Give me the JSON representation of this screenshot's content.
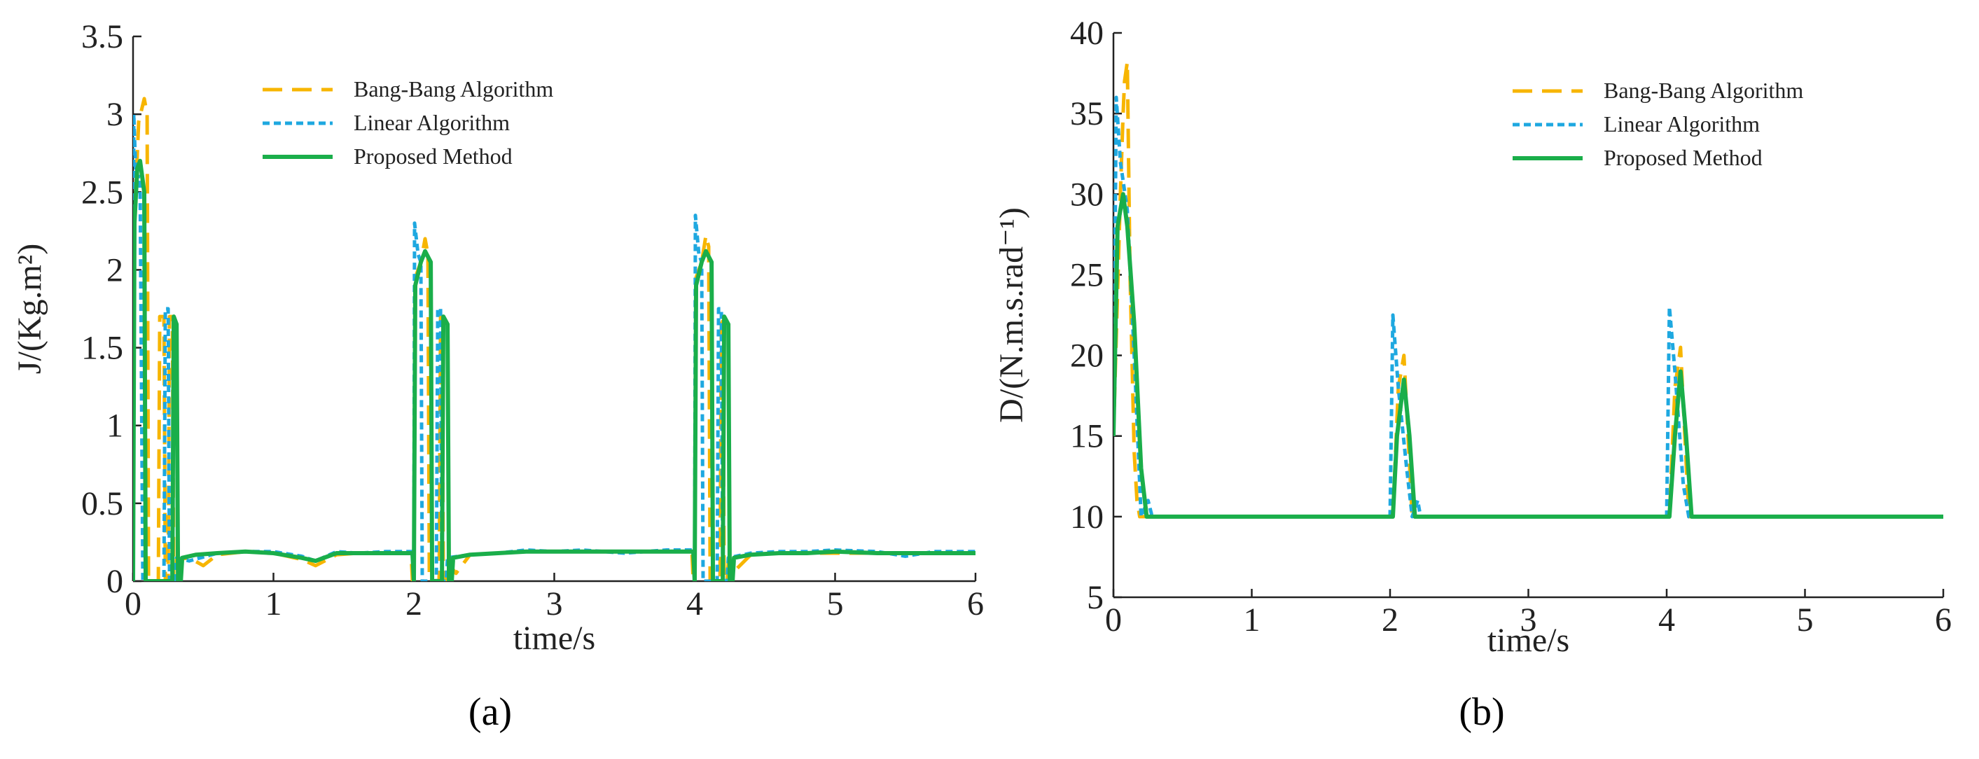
{
  "chart_data": [
    {
      "type": "line",
      "panel_label": "(a)",
      "xlabel": "time/s",
      "ylabel": "J/(Kg.m²)",
      "xlim": [
        0,
        6
      ],
      "ylim": [
        0,
        3.5
      ],
      "xticks": [
        0,
        1,
        2,
        3,
        4,
        5,
        6
      ],
      "yticks": [
        0,
        0.5,
        1,
        1.5,
        2,
        2.5,
        3,
        3.5
      ],
      "xtick_labels": [
        "0",
        "1",
        "2",
        "3",
        "4",
        "5",
        "6"
      ],
      "ytick_labels": [
        "0",
        "0.5",
        "1",
        "1.5",
        "2",
        "2.5",
        "3",
        "3.5"
      ],
      "legend_position": "top-center",
      "grid": false,
      "series": [
        {
          "name": "Bang-Bang Algorithm",
          "color": "#F7B500",
          "dash": "dashed",
          "points": [
            [
              0,
              0
            ],
            [
              0.01,
              2.3
            ],
            [
              0.04,
              2.95
            ],
            [
              0.08,
              3.1
            ],
            [
              0.1,
              3.0
            ],
            [
              0.11,
              0
            ],
            [
              0.18,
              0
            ],
            [
              0.19,
              1.7
            ],
            [
              0.22,
              1.7
            ],
            [
              0.23,
              0
            ],
            [
              0.25,
              0
            ],
            [
              0.26,
              1.7
            ],
            [
              0.28,
              1.7
            ],
            [
              0.29,
              0
            ],
            [
              0.3,
              0
            ],
            [
              0.31,
              0.14
            ],
            [
              0.4,
              0.15
            ],
            [
              0.5,
              0.1
            ],
            [
              0.6,
              0.17
            ],
            [
              0.8,
              0.19
            ],
            [
              1.0,
              0.18
            ],
            [
              1.2,
              0.14
            ],
            [
              1.3,
              0.1
            ],
            [
              1.45,
              0.17
            ],
            [
              1.6,
              0.18
            ],
            [
              1.8,
              0.18
            ],
            [
              1.98,
              0.18
            ],
            [
              1.99,
              0
            ],
            [
              2.0,
              0
            ],
            [
              2.01,
              1.95
            ],
            [
              2.05,
              2.05
            ],
            [
              2.08,
              2.2
            ],
            [
              2.1,
              2.1
            ],
            [
              2.11,
              0
            ],
            [
              2.18,
              0
            ],
            [
              2.19,
              1.7
            ],
            [
              2.2,
              1.7
            ],
            [
              2.21,
              0
            ],
            [
              2.23,
              0
            ],
            [
              2.24,
              0.12
            ],
            [
              2.3,
              0.05
            ],
            [
              2.4,
              0.17
            ],
            [
              2.6,
              0.18
            ],
            [
              2.8,
              0.19
            ],
            [
              3.0,
              0.19
            ],
            [
              3.2,
              0.19
            ],
            [
              3.5,
              0.19
            ],
            [
              3.8,
              0.19
            ],
            [
              3.98,
              0.19
            ],
            [
              3.99,
              0
            ],
            [
              4.0,
              0
            ],
            [
              4.01,
              1.95
            ],
            [
              4.05,
              2.05
            ],
            [
              4.08,
              2.22
            ],
            [
              4.1,
              2.15
            ],
            [
              4.11,
              0
            ],
            [
              4.18,
              0
            ],
            [
              4.19,
              1.7
            ],
            [
              4.2,
              1.7
            ],
            [
              4.21,
              0
            ],
            [
              4.23,
              0
            ],
            [
              4.24,
              0.12
            ],
            [
              4.3,
              0.08
            ],
            [
              4.4,
              0.17
            ],
            [
              4.6,
              0.18
            ],
            [
              4.8,
              0.18
            ],
            [
              5.0,
              0.18
            ],
            [
              5.3,
              0.18
            ],
            [
              5.6,
              0.18
            ],
            [
              6.0,
              0.18
            ]
          ]
        },
        {
          "name": "Linear Algorithm",
          "color": "#1EA8E0",
          "dash": "dotted",
          "points": [
            [
              0,
              0
            ],
            [
              0.005,
              3.0
            ],
            [
              0.02,
              2.6
            ],
            [
              0.05,
              2.6
            ],
            [
              0.07,
              0
            ],
            [
              0.22,
              0
            ],
            [
              0.23,
              1.75
            ],
            [
              0.25,
              1.75
            ],
            [
              0.26,
              0
            ],
            [
              0.3,
              0
            ],
            [
              0.31,
              0.15
            ],
            [
              0.4,
              0.13
            ],
            [
              0.6,
              0.18
            ],
            [
              0.8,
              0.19
            ],
            [
              1.0,
              0.19
            ],
            [
              1.2,
              0.16
            ],
            [
              1.3,
              0.13
            ],
            [
              1.45,
              0.19
            ],
            [
              1.6,
              0.18
            ],
            [
              1.8,
              0.19
            ],
            [
              1.99,
              0.19
            ],
            [
              2.0,
              0
            ],
            [
              2.005,
              2.3
            ],
            [
              2.03,
              2.1
            ],
            [
              2.05,
              2.05
            ],
            [
              2.06,
              0
            ],
            [
              2.16,
              0
            ],
            [
              2.17,
              1.75
            ],
            [
              2.19,
              1.75
            ],
            [
              2.2,
              0
            ],
            [
              2.23,
              0
            ],
            [
              2.24,
              0.15
            ],
            [
              2.4,
              0.17
            ],
            [
              2.6,
              0.18
            ],
            [
              2.8,
              0.2
            ],
            [
              3.0,
              0.19
            ],
            [
              3.2,
              0.2
            ],
            [
              3.5,
              0.18
            ],
            [
              3.8,
              0.2
            ],
            [
              3.99,
              0.2
            ],
            [
              4.0,
              0
            ],
            [
              4.005,
              2.35
            ],
            [
              4.03,
              2.1
            ],
            [
              4.05,
              2.05
            ],
            [
              4.06,
              0
            ],
            [
              4.16,
              0
            ],
            [
              4.17,
              1.75
            ],
            [
              4.19,
              1.75
            ],
            [
              4.2,
              0
            ],
            [
              4.23,
              0
            ],
            [
              4.24,
              0.15
            ],
            [
              4.4,
              0.18
            ],
            [
              4.6,
              0.19
            ],
            [
              4.8,
              0.19
            ],
            [
              5.0,
              0.2
            ],
            [
              5.3,
              0.19
            ],
            [
              5.5,
              0.16
            ],
            [
              5.7,
              0.19
            ],
            [
              6.0,
              0.19
            ]
          ]
        },
        {
          "name": "Proposed Method",
          "color": "#1AAE4A",
          "dash": "solid",
          "points": [
            [
              0,
              0
            ],
            [
              0.01,
              2.3
            ],
            [
              0.03,
              2.65
            ],
            [
              0.05,
              2.7
            ],
            [
              0.08,
              2.5
            ],
            [
              0.09,
              0
            ],
            [
              0.28,
              0
            ],
            [
              0.29,
              1.7
            ],
            [
              0.31,
              1.65
            ],
            [
              0.32,
              0
            ],
            [
              0.34,
              0
            ],
            [
              0.35,
              0.15
            ],
            [
              0.45,
              0.17
            ],
            [
              0.6,
              0.18
            ],
            [
              0.8,
              0.19
            ],
            [
              1.0,
              0.18
            ],
            [
              1.2,
              0.15
            ],
            [
              1.3,
              0.13
            ],
            [
              1.45,
              0.18
            ],
            [
              1.6,
              0.18
            ],
            [
              1.8,
              0.18
            ],
            [
              1.99,
              0.18
            ],
            [
              2.0,
              0
            ],
            [
              2.01,
              1.9
            ],
            [
              2.05,
              2.05
            ],
            [
              2.08,
              2.12
            ],
            [
              2.12,
              2.05
            ],
            [
              2.13,
              0
            ],
            [
              2.2,
              0
            ],
            [
              2.21,
              1.7
            ],
            [
              2.24,
              1.65
            ],
            [
              2.25,
              0
            ],
            [
              2.27,
              0
            ],
            [
              2.28,
              0.15
            ],
            [
              2.4,
              0.17
            ],
            [
              2.6,
              0.18
            ],
            [
              2.8,
              0.19
            ],
            [
              3.0,
              0.19
            ],
            [
              3.2,
              0.19
            ],
            [
              3.5,
              0.19
            ],
            [
              3.8,
              0.19
            ],
            [
              3.99,
              0.19
            ],
            [
              4.0,
              0
            ],
            [
              4.01,
              1.9
            ],
            [
              4.05,
              2.05
            ],
            [
              4.08,
              2.12
            ],
            [
              4.12,
              2.05
            ],
            [
              4.13,
              0
            ],
            [
              4.2,
              0
            ],
            [
              4.21,
              1.7
            ],
            [
              4.24,
              1.65
            ],
            [
              4.25,
              0
            ],
            [
              4.27,
              0
            ],
            [
              4.28,
              0.15
            ],
            [
              4.4,
              0.17
            ],
            [
              4.6,
              0.18
            ],
            [
              4.8,
              0.18
            ],
            [
              5.0,
              0.19
            ],
            [
              5.3,
              0.18
            ],
            [
              5.6,
              0.18
            ],
            [
              6.0,
              0.18
            ]
          ]
        }
      ]
    },
    {
      "type": "line",
      "panel_label": "(b)",
      "xlabel": "time/s",
      "ylabel": "D/(N.m.s.rad⁻¹)",
      "xlim": [
        0,
        6
      ],
      "ylim": [
        5,
        40
      ],
      "xticks": [
        0,
        1,
        2,
        3,
        4,
        5,
        6
      ],
      "yticks": [
        5,
        10,
        15,
        20,
        25,
        30,
        35,
        40
      ],
      "xtick_labels": [
        "0",
        "1",
        "2",
        "3",
        "4",
        "5",
        "6"
      ],
      "ytick_labels": [
        "5",
        "10",
        "15",
        "20",
        "25",
        "30",
        "35",
        "40"
      ],
      "legend_position": "top-right",
      "grid": false,
      "series": [
        {
          "name": "Bang-Bang Algorithm",
          "color": "#F7B500",
          "dash": "dashed",
          "points": [
            [
              0,
              15
            ],
            [
              0.05,
              30
            ],
            [
              0.07,
              35
            ],
            [
              0.08,
              37
            ],
            [
              0.1,
              38.2
            ],
            [
              0.12,
              25
            ],
            [
              0.15,
              14
            ],
            [
              0.17,
              11
            ],
            [
              0.19,
              10
            ],
            [
              2.02,
              10
            ],
            [
              2.06,
              18
            ],
            [
              2.1,
              20
            ],
            [
              2.13,
              15
            ],
            [
              2.16,
              10
            ],
            [
              4.02,
              10
            ],
            [
              4.06,
              18
            ],
            [
              4.1,
              20.5
            ],
            [
              4.12,
              17
            ],
            [
              4.16,
              10
            ],
            [
              6.0,
              10
            ]
          ]
        },
        {
          "name": "Linear Algorithm",
          "color": "#1EA8E0",
          "dash": "dotted",
          "points": [
            [
              0,
              15
            ],
            [
              0.02,
              36
            ],
            [
              0.05,
              32
            ],
            [
              0.1,
              29
            ],
            [
              0.15,
              20
            ],
            [
              0.2,
              10
            ],
            [
              0.25,
              11
            ],
            [
              0.28,
              10
            ],
            [
              2.0,
              10
            ],
            [
              2.02,
              22.5
            ],
            [
              2.06,
              18
            ],
            [
              2.12,
              13
            ],
            [
              2.16,
              10
            ],
            [
              2.2,
              11
            ],
            [
              2.22,
              10
            ],
            [
              4.0,
              10
            ],
            [
              4.02,
              23
            ],
            [
              4.06,
              19
            ],
            [
              4.12,
              12
            ],
            [
              4.16,
              10
            ],
            [
              6.0,
              10
            ]
          ]
        },
        {
          "name": "Proposed Method",
          "color": "#1AAE4A",
          "dash": "solid",
          "points": [
            [
              0,
              15
            ],
            [
              0.03,
              28
            ],
            [
              0.07,
              30
            ],
            [
              0.1,
              28
            ],
            [
              0.15,
              22
            ],
            [
              0.2,
              13
            ],
            [
              0.24,
              10
            ],
            [
              2.02,
              10
            ],
            [
              2.05,
              15
            ],
            [
              2.1,
              18.5
            ],
            [
              2.14,
              15
            ],
            [
              2.18,
              10
            ],
            [
              4.02,
              10
            ],
            [
              4.06,
              15
            ],
            [
              4.1,
              19
            ],
            [
              4.14,
              15
            ],
            [
              4.18,
              10
            ],
            [
              6.0,
              10
            ]
          ]
        }
      ]
    }
  ]
}
